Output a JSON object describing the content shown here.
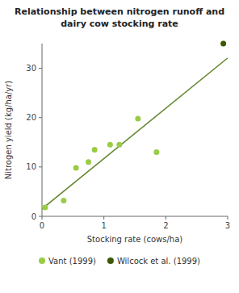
{
  "chart_data": {
    "type": "scatter",
    "title": [
      "Relationship between nitrogen runoff and",
      "dairy cow stocking rate"
    ],
    "x_label": "Stocking rate (cows/ha)",
    "y_label": "Nitrogen yield (kg/ha/yr)",
    "xlim": [
      0,
      3
    ],
    "ylim": [
      0,
      35
    ],
    "xticks": [
      0,
      1,
      2,
      3
    ],
    "yticks": [
      0,
      10,
      20,
      30
    ],
    "grid": false,
    "legend": "bottom",
    "series": [
      {
        "type": "line",
        "color": "#668833",
        "line_style": "solid",
        "x": [
          0,
          3
        ],
        "values": [
          1.5,
          32.1
        ]
      },
      {
        "name": "Vant (1999)",
        "type": "scatter",
        "marker": "circle",
        "color": "#99cc44",
        "x": [
          0.05,
          0.35,
          0.55,
          0.75,
          0.85,
          1.1,
          1.25,
          1.55,
          1.85
        ],
        "values": [
          1.8,
          3.2,
          9.8,
          11.0,
          13.5,
          14.5,
          14.5,
          19.8,
          13.0
        ]
      },
      {
        "name": "Wilcock et al. (1999)",
        "type": "scatter",
        "marker": "circle",
        "color": "#3d5a00",
        "x": [
          2.93
        ],
        "values": [
          35.0
        ]
      }
    ]
  }
}
